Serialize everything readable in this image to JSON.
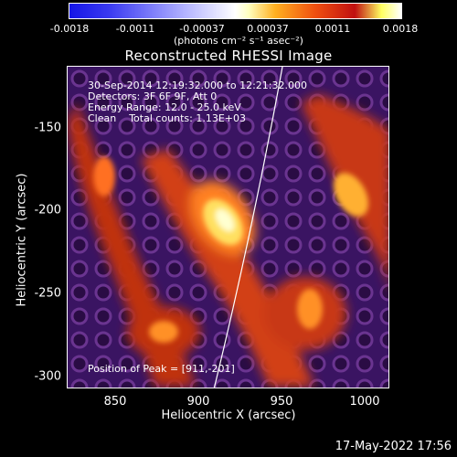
{
  "colorbar": {
    "ticks": [
      "-0.0018",
      "-0.0011",
      "-0.00037",
      "0.00037",
      "0.0011",
      "0.0018"
    ],
    "unit_label": "(photons cm⁻² s⁻¹ asec⁻²)"
  },
  "image": {
    "title": "Reconstructed RHESSI Image",
    "annotations": {
      "time_range": "30-Sep-2014 12:19:32.000 to 12:21:32.000",
      "detectors": "Detectors: 3F 6F 9F, Att 0",
      "energy": "Energy Range: 12.0 - 25.0 keV",
      "clean": "Clean    Total counts: 1.13E+03",
      "peak": "Position of Peak = [911,-201]"
    },
    "x_axis": {
      "label": "Heliocentric X (arcsec)",
      "ticks": [
        "850",
        "900",
        "950",
        "1000"
      ]
    },
    "y_axis": {
      "label": "Heliocentric Y (arcsec)",
      "ticks": [
        "-150",
        "-200",
        "-250",
        "-300"
      ]
    }
  },
  "footer": {
    "date": "17-May-2022 17:56"
  }
}
